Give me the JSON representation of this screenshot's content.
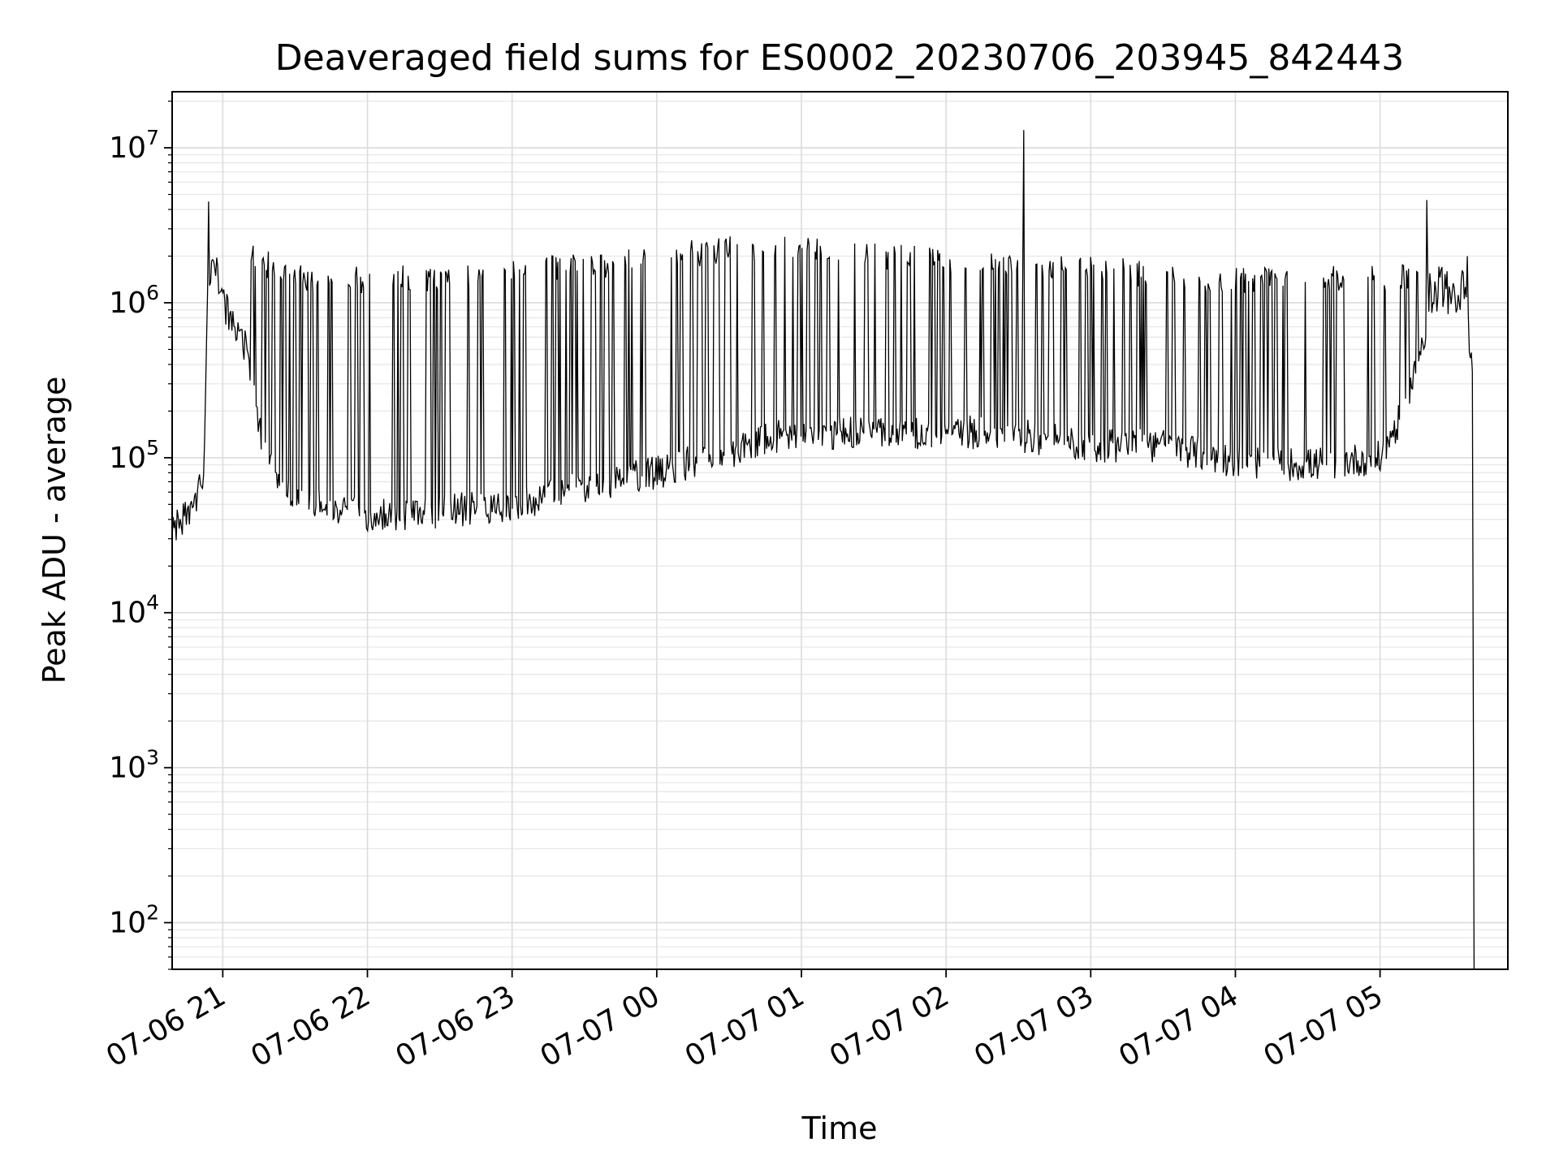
{
  "chart_data": {
    "type": "line",
    "title": "Deaveraged field sums for ES0002_20230706_203945_842443",
    "xlabel": "Time",
    "ylabel": "Peak ADU - average",
    "yscale": "log",
    "ylim": [
      50,
      23000000
    ],
    "xlim": [
      "2023-07-06 20:39",
      "2023-07-07 05:53"
    ],
    "grid": true,
    "line_color": "#000000",
    "x_ticks": [
      {
        "t": "2023-07-06 21:00",
        "label": "07-06 21"
      },
      {
        "t": "2023-07-06 22:00",
        "label": "07-06 22"
      },
      {
        "t": "2023-07-06 23:00",
        "label": "07-06 23"
      },
      {
        "t": "2023-07-07 00:00",
        "label": "07-07 00"
      },
      {
        "t": "2023-07-07 01:00",
        "label": "07-07 01"
      },
      {
        "t": "2023-07-07 02:00",
        "label": "07-07 02"
      },
      {
        "t": "2023-07-07 03:00",
        "label": "07-07 03"
      },
      {
        "t": "2023-07-07 04:00",
        "label": "07-07 04"
      },
      {
        "t": "2023-07-07 05:00",
        "label": "07-07 05"
      }
    ],
    "y_ticks": [
      {
        "value": 100,
        "base": "10",
        "exp": "2"
      },
      {
        "value": 1000,
        "base": "10",
        "exp": "3"
      },
      {
        "value": 10000,
        "base": "10",
        "exp": "4"
      },
      {
        "value": 100000,
        "base": "10",
        "exp": "5"
      },
      {
        "value": 1000000,
        "base": "10",
        "exp": "6"
      },
      {
        "value": 10000000,
        "base": "10",
        "exp": "7"
      }
    ],
    "series": [
      {
        "baseline": [
          {
            "t": "2023-07-06 20:39",
            "y": 35000
          },
          {
            "t": "2023-07-06 20:48",
            "y": 45000
          },
          {
            "t": "2023-07-06 20:52",
            "y": 80000
          },
          {
            "t": "2023-07-06 20:54",
            "y": 1500000
          },
          {
            "t": "2023-07-06 20:57",
            "y": 1700000
          },
          {
            "t": "2023-07-06 21:00",
            "y": 1000000
          },
          {
            "t": "2023-07-06 21:10",
            "y": 500000
          },
          {
            "t": "2023-07-06 21:15",
            "y": 150000
          },
          {
            "t": "2023-07-06 21:25",
            "y": 60000
          },
          {
            "t": "2023-07-06 22:00",
            "y": 42000
          },
          {
            "t": "2023-07-06 22:30",
            "y": 45000
          },
          {
            "t": "2023-07-06 23:00",
            "y": 50000
          },
          {
            "t": "2023-07-07 00:00",
            "y": 80000
          },
          {
            "t": "2023-07-07 00:30",
            "y": 110000
          },
          {
            "t": "2023-07-07 01:00",
            "y": 150000
          },
          {
            "t": "2023-07-07 01:30",
            "y": 140000
          },
          {
            "t": "2023-07-07 02:00",
            "y": 150000
          },
          {
            "t": "2023-07-07 02:30",
            "y": 140000
          },
          {
            "t": "2023-07-07 03:00",
            "y": 120000
          },
          {
            "t": "2023-07-07 03:30",
            "y": 120000
          },
          {
            "t": "2023-07-07 04:00",
            "y": 95000
          },
          {
            "t": "2023-07-07 04:30",
            "y": 90000
          },
          {
            "t": "2023-07-07 05:00",
            "y": 100000
          },
          {
            "t": "2023-07-07 05:10",
            "y": 200000
          },
          {
            "t": "2023-07-07 05:20",
            "y": 800000
          },
          {
            "t": "2023-07-07 05:35",
            "y": 1200000
          },
          {
            "t": "2023-07-07 05:39",
            "y": 300000
          }
        ],
        "envelope": [
          {
            "t": "2023-07-06 21:07",
            "y": 2600000
          },
          {
            "t": "2023-07-06 21:30",
            "y": 1800000
          },
          {
            "t": "2023-07-06 22:00",
            "y": 1700000
          },
          {
            "t": "2023-07-06 23:00",
            "y": 1900000
          },
          {
            "t": "2023-07-06 23:30",
            "y": 2100000
          },
          {
            "t": "2023-07-07 00:00",
            "y": 2400000
          },
          {
            "t": "2023-07-07 00:30",
            "y": 2700000
          },
          {
            "t": "2023-07-07 01:00",
            "y": 2800000
          },
          {
            "t": "2023-07-07 01:30",
            "y": 2500000
          },
          {
            "t": "2023-07-07 02:00",
            "y": 2300000
          },
          {
            "t": "2023-07-07 02:30",
            "y": 2200000
          },
          {
            "t": "2023-07-07 03:00",
            "y": 2100000
          },
          {
            "t": "2023-07-07 03:30",
            "y": 1800000
          },
          {
            "t": "2023-07-07 04:00",
            "y": 1700000
          },
          {
            "t": "2023-07-07 05:00",
            "y": 1800000
          },
          {
            "t": "2023-07-07 05:35",
            "y": 1700000
          }
        ],
        "spikes": [
          {
            "t": "2023-07-06 20:54",
            "y": 4500000
          },
          {
            "t": "2023-07-07 02:32",
            "y": 13000000
          },
          {
            "t": "2023-07-07 05:19",
            "y": 4600000
          },
          {
            "t": "2023-07-07 05:36",
            "y": 2000000
          }
        ],
        "end": {
          "t": "2023-07-07 05:39",
          "y": 50
        }
      }
    ]
  }
}
